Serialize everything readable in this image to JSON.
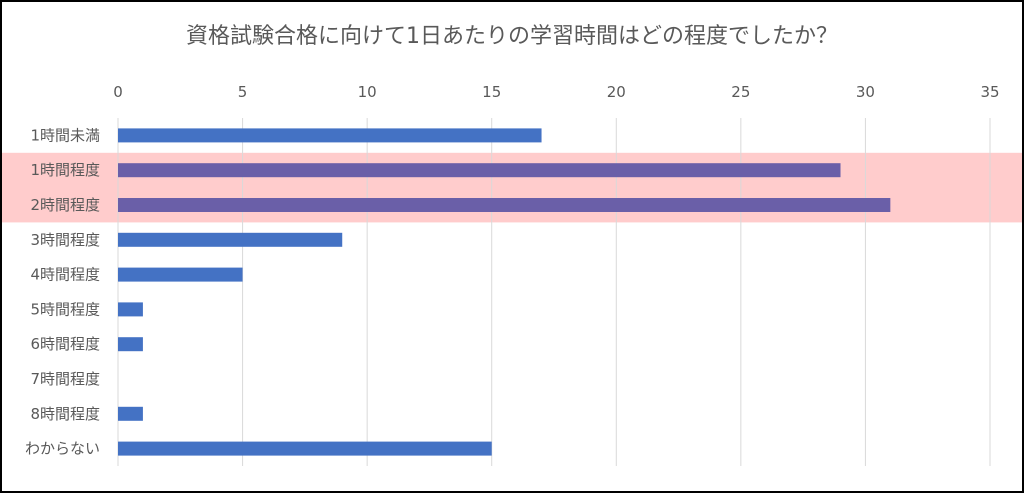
{
  "chart_data": {
    "type": "bar",
    "orientation": "horizontal",
    "title": "資格試験合格に向けて1日あたりの学習時間はどの程度でしたか？",
    "xlabel": "",
    "ylabel": "",
    "categories": [
      "1時間未満",
      "1時間程度",
      "2時間程度",
      "3時間程度",
      "4時間程度",
      "5時間程度",
      "6時間程度",
      "7時間程度",
      "8時間程度",
      "わからない"
    ],
    "values": [
      17,
      29,
      31,
      9,
      5,
      1,
      1,
      0,
      1,
      15
    ],
    "xlim": [
      0,
      35
    ],
    "x_ticks": [
      0,
      5,
      10,
      15,
      20,
      25,
      30,
      35
    ],
    "x_axis_position": "top",
    "grid": true,
    "legend": "none",
    "highlighted_categories": [
      "1時間程度",
      "2時間程度"
    ],
    "colors": {
      "bar": "#4472C4",
      "bar_highlighted": "#6A5FA8",
      "highlight_band": "#FFCCCC",
      "grid": "#D9D9D9",
      "text": "#595959"
    }
  }
}
